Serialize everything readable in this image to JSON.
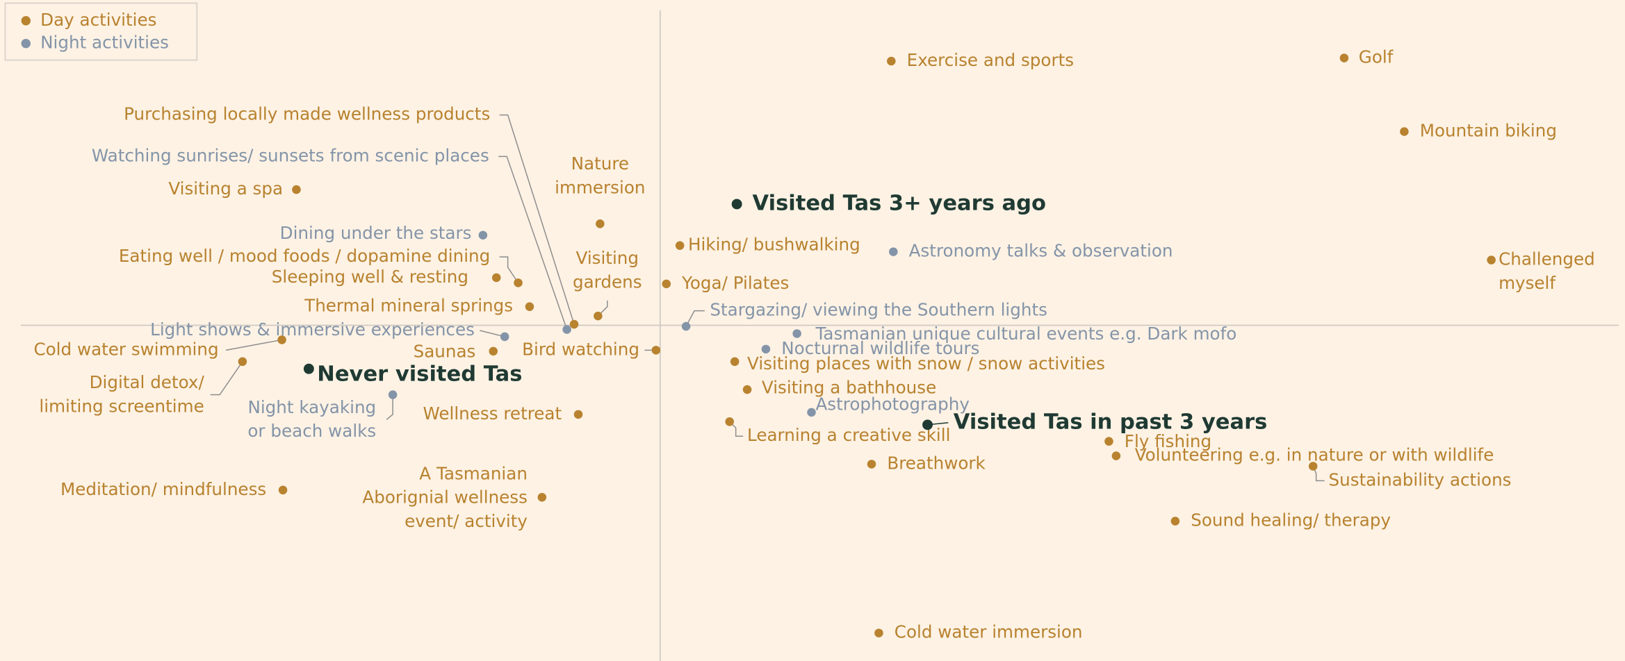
{
  "legend": {
    "series": [
      {
        "name": "Day activities",
        "color": "#b8822f",
        "items": [
          "Exercise and sports",
          "Golf",
          "Mountain biking",
          "Visiting a spa",
          [
            "Nature",
            "immersion"
          ],
          "Hiking/ bushwalking",
          [
            "Challenged",
            "myself"
          ],
          "Eating well / mood foods / dopamine dining",
          "Sleeping well & resting",
          [
            "Visiting",
            "gardens"
          ],
          "Yoga/ Pilates",
          "Thermal mineral springs",
          "Purchasing locally made wellness products",
          "Cold water swimming",
          "Bird watching",
          "Saunas",
          [
            "Digital detox/",
            "limiting screentime"
          ],
          "Visiting places with snow / snow activities",
          "Visiting a bathhouse",
          "Wellness retreat",
          "Learning a creative skill",
          "Fly fishing",
          "Volunteering e.g. in nature or with wildlife",
          "Breathwork",
          "Sustainability actions",
          "Meditation/ mindfulness",
          [
            "A Tasmanian",
            "Aborignial wellness",
            "event/ activity"
          ],
          "Sound healing/ therapy",
          "Cold water immersion"
        ]
      },
      {
        "name": "Night activities",
        "color": "#8494a8",
        "items": [
          "Watching sunrises/ sunsets from scenic places",
          "Dining under the stars",
          "Astronomy talks & observation",
          "Stargazing/ viewing the Southern lights",
          "Light shows & immersive experiences",
          "Tasmanian unique cultural events e.g. Dark mofo",
          "Nocturnal wildlife tours",
          [
            "Night kayaking",
            "or beach walks"
          ],
          "Astrophotography"
        ]
      }
    ]
  },
  "segments": {
    "color": "#1f3a33",
    "items": [
      "Visited Tas 3+ years ago",
      "Never visited Tas",
      "Visited Tas in past 3 years"
    ]
  }
}
